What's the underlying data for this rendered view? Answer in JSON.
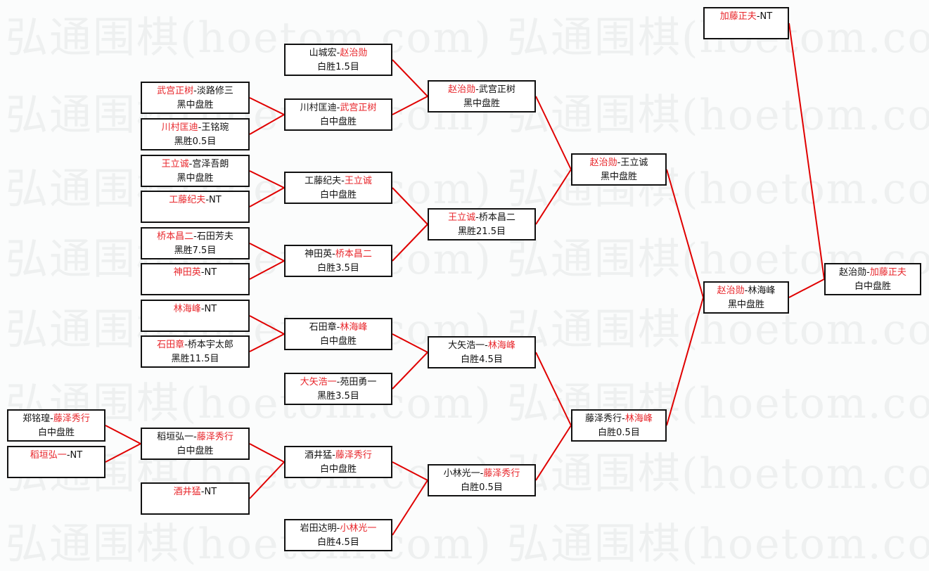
{
  "watermark": "弘通围棋(hoetom.com) 弘通围棋(hoetom.com)",
  "colors": {
    "winner": "#e8262b",
    "line": "#e00000",
    "text": "#111111"
  },
  "matches": [
    {
      "black": "郑铭瑝",
      "white": "藤泽秀行",
      "winner": "white",
      "result": "白中盘胜"
    },
    {
      "black": "稻垣弘一",
      "white": "NT",
      "winner": "black",
      "result": ""
    },
    {
      "black": "武宫正树",
      "white": "淡路修三",
      "winner": "black",
      "result": "黑中盘胜"
    },
    {
      "black": "川村匡迪",
      "white": "王铭琬",
      "winner": "black",
      "result": "黑胜0.5目"
    },
    {
      "black": "王立诚",
      "white": "宫泽吾朗",
      "winner": "black",
      "result": "黑中盘胜"
    },
    {
      "black": "工藤纪夫",
      "white": "NT",
      "winner": "black",
      "result": ""
    },
    {
      "black": "桥本昌二",
      "white": "石田芳夫",
      "winner": "black",
      "result": "黑胜7.5目"
    },
    {
      "black": "神田英",
      "white": "NT",
      "winner": "black",
      "result": ""
    },
    {
      "black": "林海峰",
      "white": "NT",
      "winner": "black",
      "result": ""
    },
    {
      "black": "石田章",
      "white": "桥本宇太郎",
      "winner": "black",
      "result": "黑胜11.5目"
    },
    {
      "black": "稻垣弘一",
      "white": "藤泽秀行",
      "winner": "white",
      "result": "白中盘胜"
    },
    {
      "black": "酒井猛",
      "white": "NT",
      "winner": "black",
      "result": ""
    },
    {
      "black": "山城宏",
      "white": "赵治勋",
      "winner": "white",
      "result": "白胜1.5目"
    },
    {
      "black": "川村匡迪",
      "white": "武宫正树",
      "winner": "white",
      "result": "白中盘胜"
    },
    {
      "black": "工藤纪夫",
      "white": "王立诚",
      "winner": "white",
      "result": "白中盘胜"
    },
    {
      "black": "神田英",
      "white": "桥本昌二",
      "winner": "white",
      "result": "白胜3.5目"
    },
    {
      "black": "石田章",
      "white": "林海峰",
      "winner": "white",
      "result": "白中盘胜"
    },
    {
      "black": "大矢浩一",
      "white": "苑田勇一",
      "winner": "black",
      "result": "黑胜3.5目"
    },
    {
      "black": "酒井猛",
      "white": "藤泽秀行",
      "winner": "white",
      "result": "白中盘胜"
    },
    {
      "black": "岩田达明",
      "white": "小林光一",
      "winner": "white",
      "result": "白胜4.5目"
    },
    {
      "black": "赵治勋",
      "white": "武宫正树",
      "winner": "black",
      "result": "黑中盘胜"
    },
    {
      "black": "王立诚",
      "white": "桥本昌二",
      "winner": "black",
      "result": "黑胜21.5目"
    },
    {
      "black": "大矢浩一",
      "white": "林海峰",
      "winner": "white",
      "result": "白胜4.5目"
    },
    {
      "black": "小林光一",
      "white": "藤泽秀行",
      "winner": "white",
      "result": "白胜0.5目"
    },
    {
      "black": "赵治勋",
      "white": "王立诚",
      "winner": "black",
      "result": "黑中盘胜"
    },
    {
      "black": "藤泽秀行",
      "white": "林海峰",
      "winner": "white",
      "result": "白胜0.5目"
    },
    {
      "black": "加藤正夫",
      "white": "NT",
      "winner": "black",
      "result": ""
    },
    {
      "black": "赵治勋",
      "white": "林海峰",
      "winner": "black",
      "result": "黑中盘胜"
    },
    {
      "black": "赵治勋",
      "white": "加藤正夫",
      "winner": "white",
      "result": "白中盘胜"
    }
  ]
}
